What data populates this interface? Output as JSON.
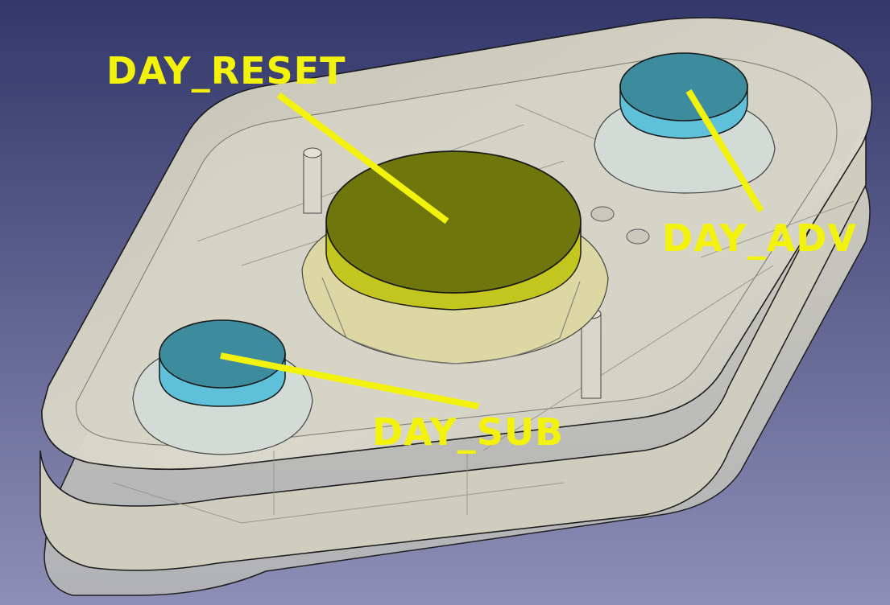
{
  "colors": {
    "background_top": "#363a6b",
    "background_bottom": "#8b8db5",
    "housing_fill": "#d8d6c6",
    "housing_edge": "#1a1a1a",
    "reset_button": "#6e760c",
    "reset_button_side": "#c9cc20",
    "side_button": "#3c8c9e",
    "side_button_side": "#5fc2dc",
    "callout": "#f2f20c"
  },
  "labels": {
    "day_reset": "DAY_RESET",
    "day_adv": "DAY_ADV",
    "day_sub": "DAY_SUB"
  }
}
